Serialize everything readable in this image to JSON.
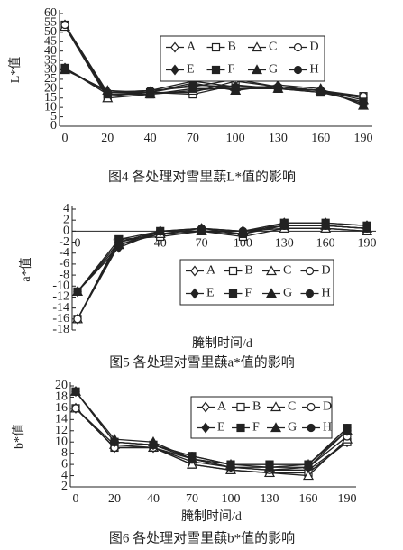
{
  "chart_data": [
    {
      "type": "line",
      "title": "图4  各处理对雪里蕻L*值的影响",
      "y_label": "L*值",
      "categories": [
        "0",
        "20",
        "40",
        "70",
        "100",
        "130",
        "160",
        "190"
      ],
      "ylim": [
        0,
        60
      ],
      "yticks": [
        0,
        5,
        10,
        15,
        20,
        25,
        30,
        35,
        40,
        45,
        50,
        55,
        60
      ],
      "series": [
        {
          "name": "A",
          "color": "#222222",
          "marker": "diamond",
          "filled": false,
          "values": [
            54,
            17,
            18,
            18,
            24,
            21,
            19,
            15
          ]
        },
        {
          "name": "B",
          "color": "#222222",
          "marker": "square",
          "filled": false,
          "values": [
            54,
            16,
            18,
            17,
            22,
            20,
            18,
            16
          ]
        },
        {
          "name": "C",
          "color": "#222222",
          "marker": "triangle",
          "filled": false,
          "values": [
            53,
            15,
            17,
            19,
            21,
            20,
            19,
            14
          ]
        },
        {
          "name": "D",
          "color": "#222222",
          "marker": "circle",
          "filled": false,
          "values": [
            54,
            18,
            19,
            21,
            25,
            21,
            19,
            16
          ]
        },
        {
          "name": "E",
          "color": "#222222",
          "marker": "diamond",
          "filled": true,
          "values": [
            31,
            18,
            18,
            22,
            21,
            21,
            19,
            12
          ]
        },
        {
          "name": "F",
          "color": "#222222",
          "marker": "square",
          "filled": true,
          "values": [
            31,
            17,
            17,
            20,
            20,
            20,
            18,
            13
          ]
        },
        {
          "name": "G",
          "color": "#222222",
          "marker": "triangle",
          "filled": true,
          "values": [
            30,
            19,
            18,
            23,
            19,
            22,
            20,
            11
          ]
        },
        {
          "name": "H",
          "color": "#222222",
          "marker": "circle",
          "filled": true,
          "values": [
            31,
            18,
            19,
            24,
            21,
            21,
            19,
            12
          ]
        }
      ]
    },
    {
      "type": "line",
      "title": "图5  各处理对雪里蕻a*值的影响",
      "y_label": "a*值",
      "x_label": "腌制时间/d",
      "categories": [
        "0",
        "20",
        "40",
        "70",
        "100",
        "130",
        "160",
        "190"
      ],
      "ylim": [
        -18,
        4
      ],
      "yticks": [
        -18,
        -16,
        -14,
        -12,
        -10,
        -8,
        -6,
        -4,
        -2,
        0,
        2,
        4
      ],
      "series": [
        {
          "name": "A",
          "color": "#222222",
          "marker": "diamond",
          "filled": false,
          "values": [
            -16,
            -2,
            -0.5,
            0.5,
            -0.5,
            1,
            1,
            0.5
          ]
        },
        {
          "name": "B",
          "color": "#222222",
          "marker": "square",
          "filled": false,
          "values": [
            -16,
            -1.5,
            -1,
            0,
            -1,
            0.5,
            0.5,
            0
          ]
        },
        {
          "name": "C",
          "color": "#222222",
          "marker": "triangle",
          "filled": false,
          "values": [
            -16,
            -2.5,
            -0.5,
            0,
            0,
            0.5,
            0.5,
            0
          ]
        },
        {
          "name": "D",
          "color": "#222222",
          "marker": "circle",
          "filled": false,
          "values": [
            -16,
            -2,
            0,
            0.5,
            0,
            1,
            1,
            0.5
          ]
        },
        {
          "name": "E",
          "color": "#222222",
          "marker": "diamond",
          "filled": true,
          "values": [
            -11,
            -3,
            0,
            0.5,
            0,
            1.5,
            1.5,
            1
          ]
        },
        {
          "name": "F",
          "color": "#222222",
          "marker": "square",
          "filled": true,
          "values": [
            -11,
            -1.5,
            0,
            0,
            -0.5,
            1.5,
            1.5,
            1
          ]
        },
        {
          "name": "G",
          "color": "#222222",
          "marker": "triangle",
          "filled": true,
          "values": [
            -11,
            -2,
            0,
            0,
            0,
            1,
            1,
            0.5
          ]
        },
        {
          "name": "H",
          "color": "#222222",
          "marker": "circle",
          "filled": true,
          "values": [
            -11,
            -2.5,
            0,
            0,
            0,
            1,
            1,
            0.5
          ]
        }
      ]
    },
    {
      "type": "line",
      "title": "图6  各处理对雪里蕻b*值的影响",
      "y_label": "b*值",
      "x_label": "腌制时间/d",
      "categories": [
        "0",
        "20",
        "40",
        "70",
        "100",
        "130",
        "160",
        "190"
      ],
      "ylim": [
        2,
        20
      ],
      "yticks": [
        2,
        4,
        6,
        8,
        10,
        12,
        14,
        16,
        18,
        20
      ],
      "series": [
        {
          "name": "A",
          "color": "#222222",
          "marker": "diamond",
          "filled": false,
          "values": [
            16,
            9,
            9,
            6.5,
            5.5,
            5,
            5,
            10
          ]
        },
        {
          "name": "B",
          "color": "#222222",
          "marker": "square",
          "filled": false,
          "values": [
            16,
            9,
            9,
            6,
            5,
            4.5,
            4.5,
            10
          ]
        },
        {
          "name": "C",
          "color": "#222222",
          "marker": "triangle",
          "filled": false,
          "values": [
            16,
            9.5,
            9,
            6,
            5,
            4.5,
            4,
            10.5
          ]
        },
        {
          "name": "D",
          "color": "#222222",
          "marker": "circle",
          "filled": false,
          "values": [
            16,
            9,
            9,
            7,
            5.5,
            5,
            5.5,
            11
          ]
        },
        {
          "name": "E",
          "color": "#222222",
          "marker": "diamond",
          "filled": true,
          "values": [
            19,
            10,
            9.5,
            7,
            5.5,
            5.5,
            5.5,
            12
          ]
        },
        {
          "name": "F",
          "color": "#222222",
          "marker": "square",
          "filled": true,
          "values": [
            19,
            10,
            9.5,
            7.5,
            6,
            6,
            6,
            12.5
          ]
        },
        {
          "name": "G",
          "color": "#222222",
          "marker": "triangle",
          "filled": true,
          "values": [
            19,
            10.5,
            10,
            7,
            6,
            5.5,
            6,
            12
          ]
        },
        {
          "name": "H",
          "color": "#222222",
          "marker": "circle",
          "filled": true,
          "values": [
            19,
            10,
            9.5,
            7.5,
            6,
            6,
            6,
            12.5
          ]
        }
      ]
    }
  ]
}
